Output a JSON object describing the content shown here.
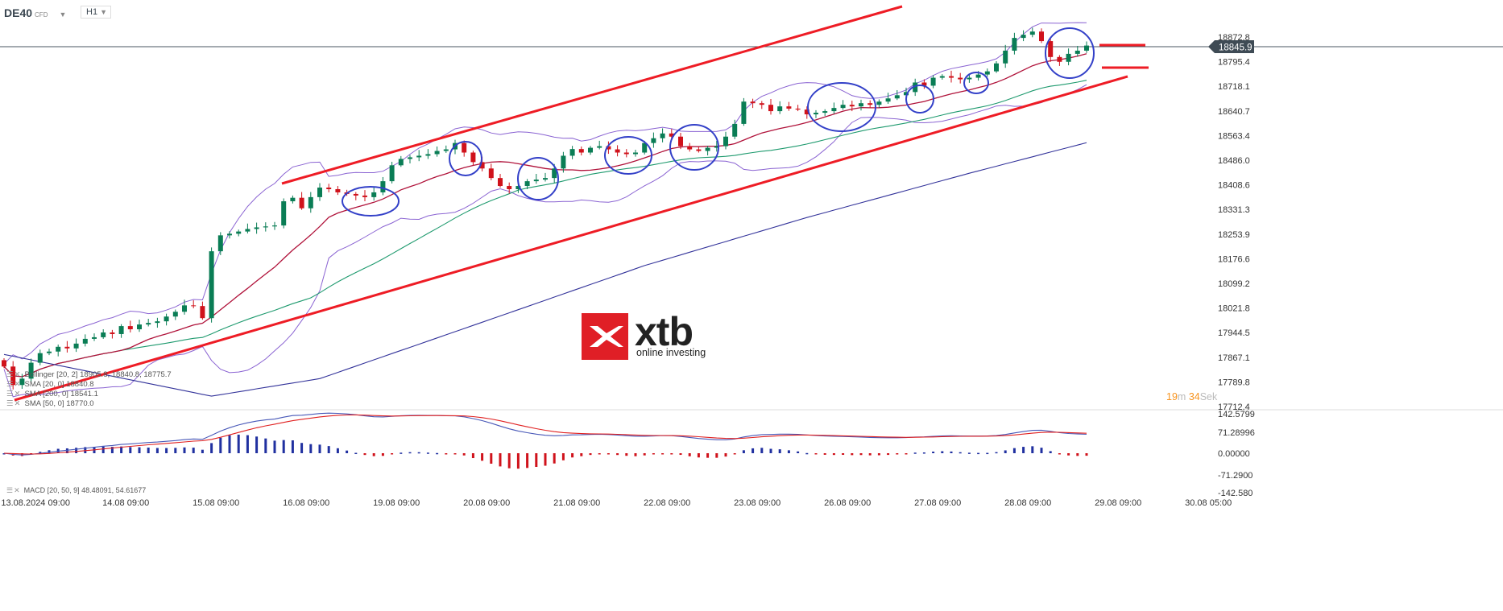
{
  "header": {
    "symbol": "DE40",
    "symbol_type": "CFD",
    "timeframe": "H1"
  },
  "legend": [
    "Bollinger [20, 2] 18905.8, 18840.8, 18775.7",
    "SMA [20, 0] 18840.8",
    "SMA [200, 0] 18541.1",
    "SMA [50, 0] 18770.0"
  ],
  "macd_legend": "MACD [20, 50, 9] 48.48091, 54.61677",
  "timer": {
    "minutes": "19",
    "min_unit": "m",
    "seconds": "34",
    "sec_unit": "Sek"
  },
  "logo": {
    "name": "xtb",
    "tagline": "online investing"
  },
  "colors": {
    "up": "#0a7d55",
    "down": "#d0121b",
    "bollinger": "#8a63d2",
    "sma20": "#b0123a",
    "sma50": "#1e9a6e",
    "sma200": "#33339a",
    "trendline": "#ee1c25",
    "annotation": "#3340c8",
    "macd": "#4858b8",
    "signal": "#e02020"
  },
  "chart_data": {
    "type": "candlestick",
    "instrument": "DE40",
    "current_price": "18845.9",
    "price_ticks": [
      "18872.8",
      "18795.4",
      "18718.1",
      "18640.7",
      "18563.4",
      "18486.0",
      "18408.6",
      "18331.3",
      "18253.9",
      "18176.6",
      "18099.2",
      "18021.8",
      "17944.5",
      "17867.1",
      "17789.8",
      "17712.4"
    ],
    "ylim": [
      17712.4,
      18872.8
    ],
    "macd_ticks": [
      "142.5799",
      "71.28996",
      "0.00000",
      "-71.2900",
      "-142.580"
    ],
    "macd_ylim": [
      -142.58,
      142.58
    ],
    "time_labels": [
      "13.08.2024  09:00",
      "14.08  09:00",
      "15.08  09:00",
      "16.08  09:00",
      "19.08  09:00",
      "20.08  09:00",
      "21.08  09:00",
      "22.08  09:00",
      "23.08  09:00",
      "26.08  09:00",
      "27.08  09:00",
      "28.08  09:00",
      "29.08  09:00",
      "30.08  05:00"
    ],
    "close": [
      17838,
      17780,
      17800,
      17850,
      17880,
      17885,
      17900,
      17895,
      17910,
      17925,
      17930,
      17945,
      17940,
      17965,
      17955,
      17970,
      17975,
      17980,
      17995,
      18010,
      18030,
      18028,
      17990,
      18200,
      18250,
      18255,
      18262,
      18270,
      18275,
      18278,
      18281,
      18357,
      18368,
      18335,
      18370,
      18400,
      18395,
      18385,
      18380,
      18375,
      18370,
      18385,
      18420,
      18470,
      18490,
      18495,
      18500,
      18505,
      18515,
      18520,
      18540,
      18510,
      18480,
      18460,
      18430,
      18405,
      18395,
      18405,
      18420,
      18425,
      18430,
      18460,
      18500,
      18521,
      18510,
      18525,
      18530,
      18520,
      18510,
      18505,
      18510,
      18540,
      18555,
      18570,
      18560,
      18530,
      18520,
      18515,
      18525,
      18530,
      18560,
      18600,
      18670,
      18665,
      18660,
      18640,
      18655,
      18648,
      18645,
      18630,
      18635,
      18640,
      18650,
      18660,
      18655,
      18665,
      18660,
      18670,
      18680,
      18690,
      18700,
      18730,
      18720,
      18745,
      18750,
      18745,
      18740,
      18745,
      18755,
      18765,
      18790,
      18830,
      18870,
      18880,
      18890,
      18860,
      18810,
      18795,
      18820,
      18830,
      18846
    ],
    "sma200": {
      "index": [
        0,
        23,
        35,
        53,
        71,
        89,
        107,
        120
      ],
      "values": [
        17876,
        17745,
        17800,
        17977,
        18155,
        18306,
        18445,
        18541
      ]
    }
  }
}
